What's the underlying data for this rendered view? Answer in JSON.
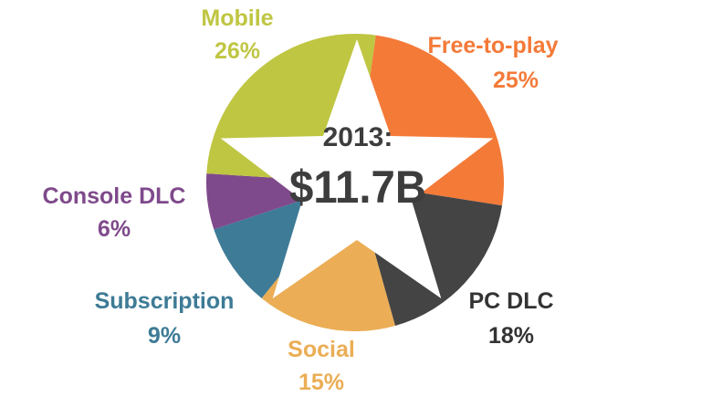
{
  "chart_data": {
    "type": "pie",
    "title": "2013:",
    "total": "$11.7B",
    "slices": [
      {
        "name": "Free-to-play",
        "value": 25,
        "label": "25%",
        "color": "#f47a38"
      },
      {
        "name": "PC DLC",
        "value": 18,
        "label": "18%",
        "color": "#444444"
      },
      {
        "name": "Social",
        "value": 15,
        "label": "15%",
        "color": "#ebad55"
      },
      {
        "name": "Subscription",
        "value": 9,
        "label": "9%",
        "color": "#3e7b96"
      },
      {
        "name": "Console DLC",
        "value": 6,
        "label": "6%",
        "color": "#7f4a8b"
      },
      {
        "name": "Mobile",
        "value": 26,
        "label": "26%",
        "color": "#bfc642"
      }
    ],
    "overlay": "white star"
  }
}
